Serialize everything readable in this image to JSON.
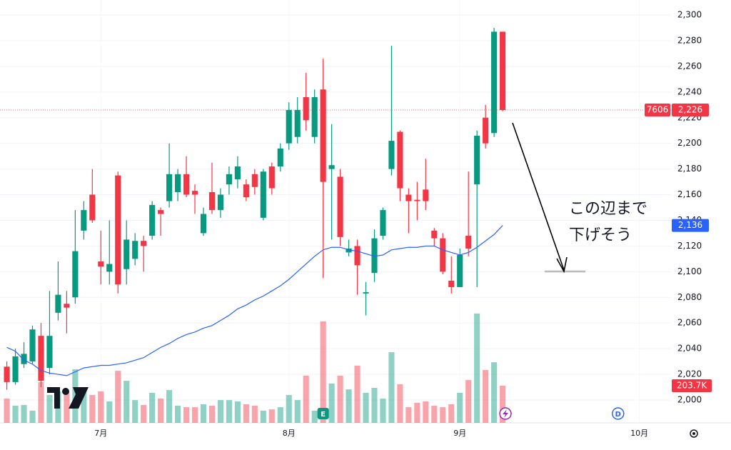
{
  "chart_data": {
    "type": "candlestick",
    "symbol": "7606",
    "open": [
      2026,
      2014,
      2028,
      2030,
      2050,
      2025,
      2068,
      2075,
      2080,
      2132,
      2160,
      2108,
      2100,
      2175,
      2102,
      2110,
      2124,
      2128,
      2148,
      2155,
      2162,
      2176,
      2163,
      2130,
      2162,
      2148,
      2168,
      2172,
      2168,
      2176,
      2142,
      2182,
      2182,
      2200,
      2205,
      2236,
      2205,
      2242,
      2180,
      2174,
      2115,
      2120,
      2083,
      2099,
      2128,
      2180,
      2209,
      2160,
      2156,
      2164,
      2132,
      2126,
      2093,
      2088,
      2128,
      2168,
      2220,
      2208,
      2287
    ],
    "high": [
      2030,
      2040,
      2045,
      2058,
      2060,
      2085,
      2108,
      2085,
      2148,
      2155,
      2180,
      2132,
      2140,
      2178,
      2140,
      2130,
      2128,
      2155,
      2150,
      2200,
      2180,
      2190,
      2168,
      2150,
      2185,
      2165,
      2182,
      2190,
      2172,
      2180,
      2180,
      2185,
      2200,
      2232,
      2236,
      2255,
      2242,
      2266,
      2215,
      2180,
      2125,
      2125,
      2092,
      2133,
      2150,
      2276,
      2210,
      2165,
      2170,
      2188,
      2134,
      2130,
      2112,
      2118,
      2178,
      2210,
      2230,
      2290,
      2287
    ],
    "low": [
      2008,
      2012,
      2025,
      2028,
      2010,
      2020,
      2062,
      2052,
      2075,
      2125,
      2138,
      2090,
      2090,
      2083,
      2090,
      2105,
      2100,
      2125,
      2128,
      2150,
      2155,
      2158,
      2145,
      2128,
      2145,
      2142,
      2160,
      2165,
      2155,
      2160,
      2140,
      2160,
      2178,
      2195,
      2200,
      2210,
      2200,
      2095,
      2125,
      2120,
      2112,
      2082,
      2066,
      2092,
      2125,
      2175,
      2155,
      2130,
      2140,
      2148,
      2120,
      2098,
      2083,
      2088,
      2112,
      2088,
      2196,
      2205,
      2225
    ],
    "close": [
      2014,
      2034,
      2036,
      2055,
      2015,
      2050,
      2082,
      2072,
      2116,
      2148,
      2140,
      2104,
      2106,
      2090,
      2125,
      2124,
      2120,
      2152,
      2145,
      2176,
      2176,
      2160,
      2160,
      2145,
      2148,
      2160,
      2176,
      2182,
      2158,
      2166,
      2178,
      2165,
      2196,
      2226,
      2226,
      2218,
      2236,
      2170,
      2183,
      2127,
      2118,
      2105,
      2084,
      2126,
      2148,
      2202,
      2165,
      2155,
      2155,
      2155,
      2126,
      2100,
      2088,
      2113,
      2118,
      2206,
      2200,
      2287,
      2226
    ],
    "volume": [
      133,
      94,
      98,
      67,
      224,
      153,
      173,
      165,
      294,
      173,
      153,
      173,
      118,
      286,
      231,
      125,
      98,
      165,
      133,
      180,
      94,
      86,
      86,
      102,
      94,
      125,
      125,
      118,
      102,
      94,
      67,
      74,
      86,
      153,
      125,
      259,
      67,
      557,
      216,
      259,
      184,
      314,
      165,
      192,
      133,
      388,
      212,
      86,
      110,
      118,
      94,
      86,
      102,
      165,
      235,
      600,
      290,
      333,
      203.7
    ],
    "volume_label": "203.7K",
    "volume_ylim": [
      0,
      800
    ],
    "last_close_label": "2,226",
    "ma": {
      "color": "#2962ff",
      "label": "2,136",
      "values": [
        2041,
        2038,
        2031,
        2028,
        2023,
        2021,
        2020,
        2019,
        2022,
        2025,
        2026,
        2027,
        2027,
        2028,
        2029,
        2031,
        2033,
        2037,
        2041,
        2044,
        2048,
        2051,
        2053,
        2056,
        2058,
        2062,
        2066,
        2071,
        2074,
        2078,
        2081,
        2085,
        2089,
        2094,
        2100,
        2106,
        2112,
        2117,
        2119,
        2119,
        2117,
        2116,
        2114,
        2112,
        2113,
        2117,
        2118,
        2119,
        2119,
        2120,
        2120,
        2117,
        2115,
        2113,
        2115,
        2119,
        2124,
        2129,
        2136
      ]
    },
    "colors": {
      "up": "#089981",
      "down": "#f23645"
    },
    "xlim": [
      -0.8,
      77.7
    ],
    "xticks": [
      {
        "value": 11,
        "label": "7月"
      },
      {
        "value": 33,
        "label": "8月"
      },
      {
        "value": 53,
        "label": "9月"
      },
      {
        "value": 74,
        "label": "10月"
      }
    ],
    "ylim": [
      1982.2,
      2311.7
    ],
    "yticks": [
      {
        "value": 2000,
        "label": "2,000"
      },
      {
        "value": 2020,
        "label": "2,020"
      },
      {
        "value": 2040,
        "label": "2,040"
      },
      {
        "value": 2060,
        "label": "2,060"
      },
      {
        "value": 2080,
        "label": "2,080"
      },
      {
        "value": 2100,
        "label": "2,100"
      },
      {
        "value": 2120,
        "label": "2,120"
      },
      {
        "value": 2140,
        "label": "2,140"
      },
      {
        "value": 2160,
        "label": "2,160"
      },
      {
        "value": 2180,
        "label": "2,180"
      },
      {
        "value": 2200,
        "label": "2,200"
      },
      {
        "value": 2220,
        "label": "2,220"
      },
      {
        "value": 2240,
        "label": "2,240"
      },
      {
        "value": 2260,
        "label": "2,260"
      },
      {
        "value": 2280,
        "label": "2,280"
      },
      {
        "value": 2300,
        "label": "2,300"
      }
    ],
    "grid": true,
    "events": [
      "E",
      "D"
    ],
    "annotation": {
      "lines": [
        "この辺まで",
        "下げそう"
      ],
      "target": 2100
    }
  }
}
